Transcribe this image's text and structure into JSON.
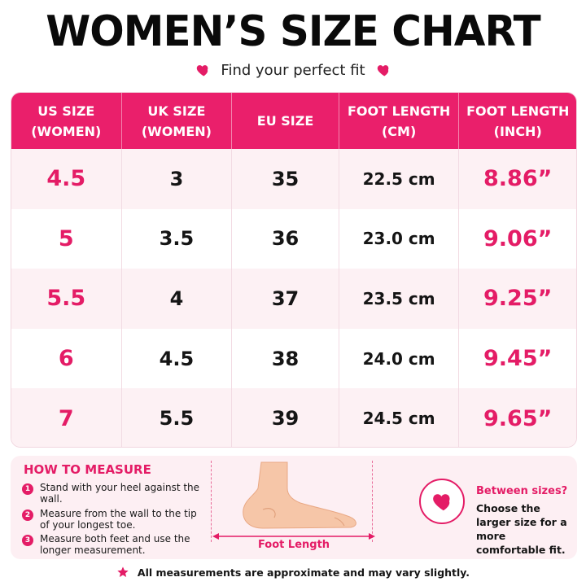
{
  "title": "WOMEN’S SIZE CHART",
  "subtitle": "Find your perfect fit",
  "table": {
    "headers": [
      "US SIZE\n(WOMEN)",
      "UK SIZE\n(WOMEN)",
      "EU SIZE",
      "FOOT LENGTH\n(CM)",
      "FOOT LENGTH\n(INCH)"
    ],
    "rows": [
      {
        "us": "4.5",
        "uk": "3",
        "eu": "35",
        "cm": "22.5 cm",
        "inch": "8.86”"
      },
      {
        "us": "5",
        "uk": "3.5",
        "eu": "36",
        "cm": "23.0 cm",
        "inch": "9.06”"
      },
      {
        "us": "5.5",
        "uk": "4",
        "eu": "37",
        "cm": "23.5 cm",
        "inch": "9.25”"
      },
      {
        "us": "6",
        "uk": "4.5",
        "eu": "38",
        "cm": "24.0 cm",
        "inch": "9.45”"
      },
      {
        "us": "7",
        "uk": "5.5",
        "eu": "39",
        "cm": "24.5 cm",
        "inch": "9.65”"
      }
    ]
  },
  "how_to_measure": {
    "title": "HOW TO MEASURE",
    "steps": [
      {
        "num": "1",
        "text": "Stand with your heel against the wall."
      },
      {
        "num": "2",
        "text": "Measure from the wall to the tip of your longest toe."
      },
      {
        "num": "3",
        "text": "Measure both feet and use the longer measurement."
      }
    ],
    "foot_label": "Foot Length"
  },
  "between_sizes": {
    "title": "Between sizes?",
    "text": "Choose the larger size for a more comfortable fit."
  },
  "note": "All measurements are approximate and may vary slightly.",
  "colors": {
    "accent": "#e41c66",
    "header_bg": "#ea1f6b",
    "row_tint": "#fdf1f4",
    "panel_bg": "#fdeff3"
  },
  "icons": {
    "subtitle": "heart-icon",
    "between": "heart-icon",
    "note": "star-icon"
  }
}
